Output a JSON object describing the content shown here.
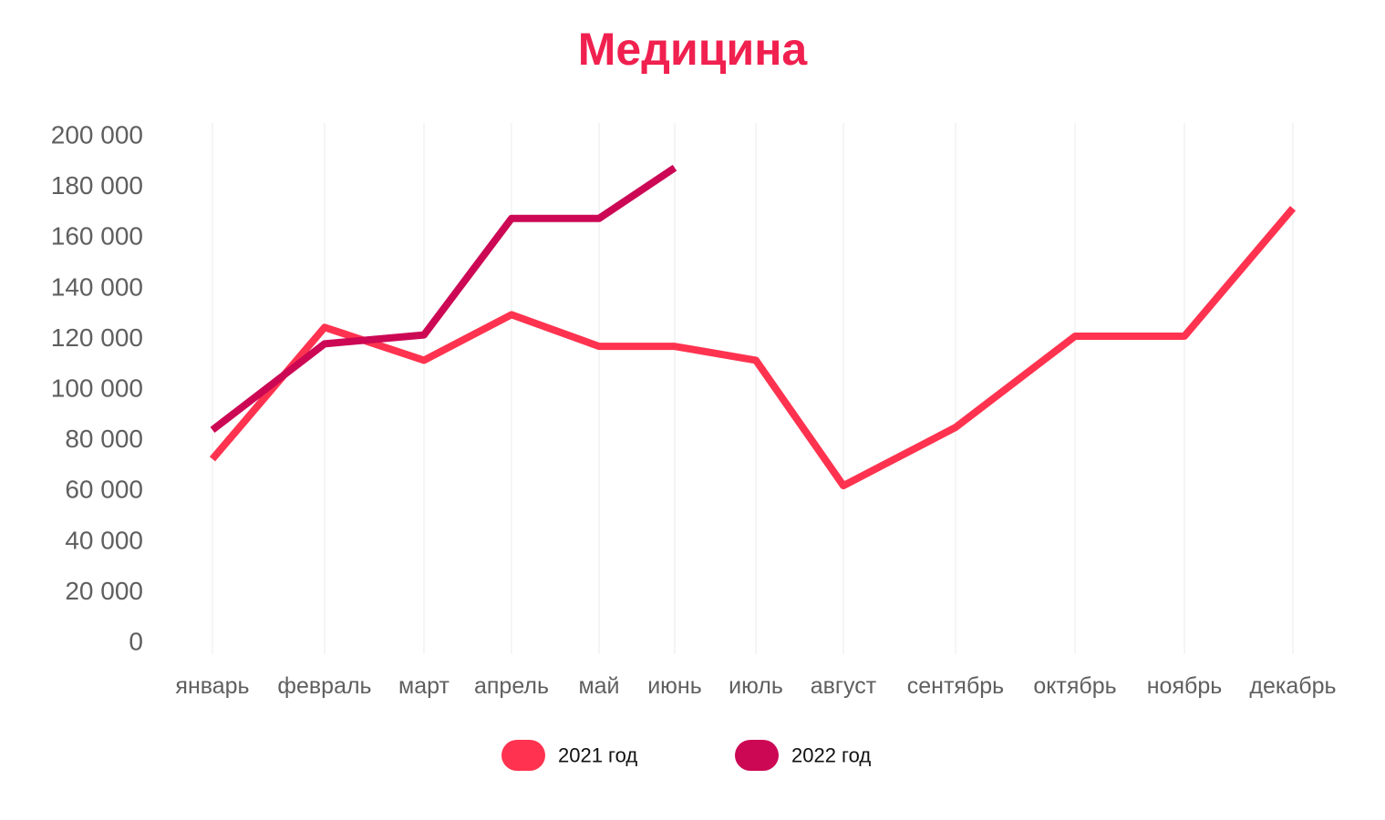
{
  "chart_data": {
    "type": "line",
    "title": "Медицина",
    "xlabel": "",
    "ylabel": "",
    "categories": [
      "январь",
      "февраль",
      "март",
      "апрель",
      "май",
      "июнь",
      "июль",
      "август",
      "сентябрь",
      "октябрь",
      "ноябрь",
      "декабрь"
    ],
    "y_ticks": [
      "0",
      "20 000",
      "40 000",
      "60 000",
      "80 000",
      "100 000",
      "120 000",
      "140 000",
      "160 000",
      "180 000",
      "200 000"
    ],
    "ylim": [
      0,
      200000
    ],
    "grid": "vertical",
    "legend_position": "bottom",
    "series": [
      {
        "name": "2021 год",
        "color": "#ff334f",
        "values": [
          72000,
          124000,
          111000,
          129000,
          116500,
          116500,
          111000,
          61500,
          84500,
          120500,
          120500,
          171000
        ]
      },
      {
        "name": "2022 год",
        "color": "#cc0855",
        "values": [
          83500,
          117500,
          121000,
          167000,
          167000,
          187000,
          null,
          null,
          null,
          null,
          null,
          null
        ]
      }
    ]
  }
}
